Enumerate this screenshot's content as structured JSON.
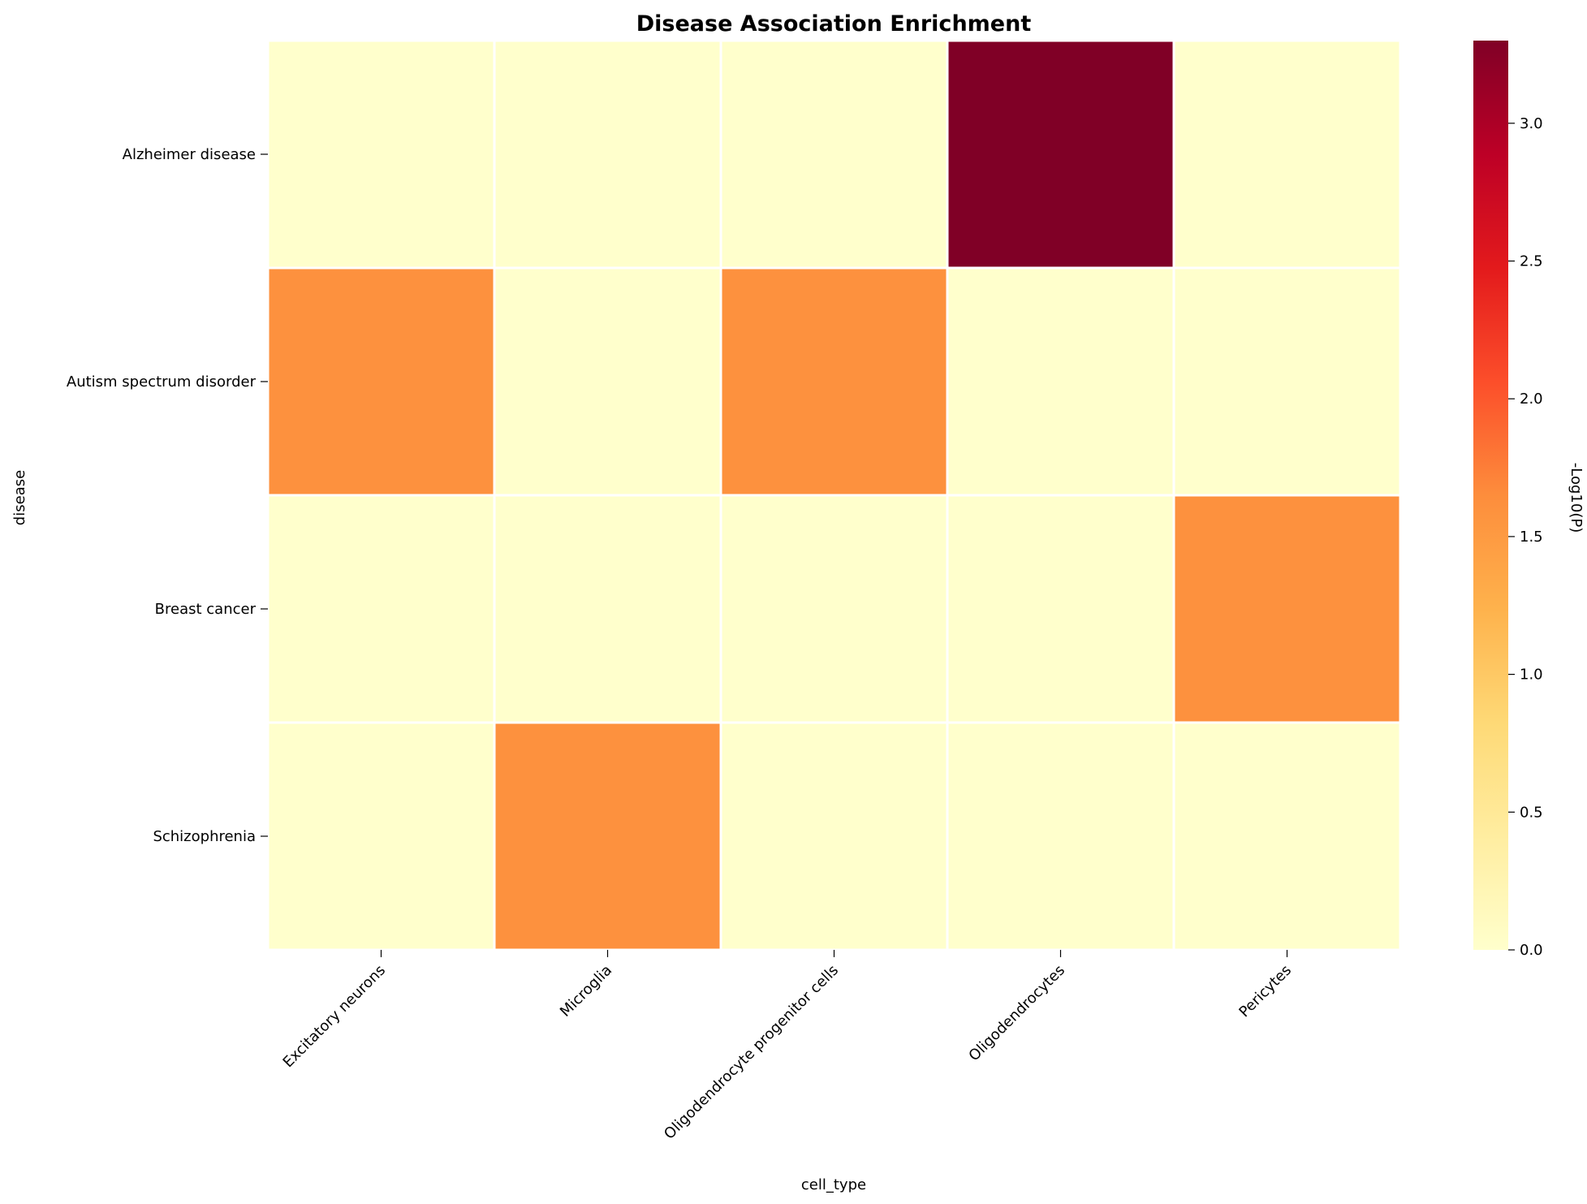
{
  "chart_data": {
    "type": "heatmap",
    "title": "Disease Association Enrichment",
    "xlabel": "cell_type",
    "ylabel": "disease",
    "x": [
      "Excitatory neurons",
      "Microglia",
      "Oligodendrocyte progenitor cells",
      "Oligodendrocytes",
      "Pericytes"
    ],
    "y": [
      "Alzheimer disease",
      "Autism spectrum disorder",
      "Breast cancer",
      "Schizophrenia"
    ],
    "values": [
      [
        0,
        0,
        0,
        3.3,
        0
      ],
      [
        1.6,
        0,
        1.6,
        0,
        0
      ],
      [
        0,
        0,
        0,
        0,
        1.6
      ],
      [
        0,
        1.6,
        0,
        0,
        0
      ]
    ],
    "colorbar": {
      "label": "-Log10(P)",
      "range": [
        0,
        3.3
      ],
      "ticks": [
        0.0,
        0.5,
        1.0,
        1.5,
        2.0,
        2.5,
        3.0
      ],
      "tick_labels": [
        "0.0",
        "0.5",
        "1.0",
        "1.5",
        "2.0",
        "2.5",
        "3.0"
      ],
      "colormap": "YlOrRd",
      "colors": [
        "#ffffcc",
        "#ffeda0",
        "#fed976",
        "#feb24c",
        "#fd8d3c",
        "#fc4e2a",
        "#e31a1c",
        "#bd0026",
        "#800026"
      ]
    },
    "cell_border_color": "#ffffff",
    "legend": "colorbar-right",
    "grid": false
  }
}
